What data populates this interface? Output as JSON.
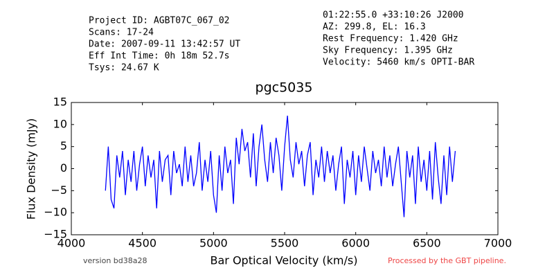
{
  "chart_data": {
    "type": "line",
    "title": "pgc5035",
    "annotations_left": [
      "Project ID: AGBT07C_067_02",
      "Scans: 17-24",
      "Date: 2007-09-11 13:42:57 UT",
      "Eff Int Time: 0h 18m 52.7s",
      "Tsys: 24.67 K"
    ],
    "annotations_right": [
      "01:22:55.0 +33:10:26 J2000",
      "AZ: 299.8, EL: 16.3",
      "Rest Frequency:   1.420 GHz",
      "Sky Frequency:    1.395 GHz",
      "Velocity: 5460 km/s OPTI-BAR"
    ],
    "footer_left": "version bd38a28",
    "footer_right": "Processed by the GBT pipeline.",
    "xlabel": "Bar Optical Velocity (km/s)",
    "ylabel": "Flux Density (mJy)",
    "xlim": [
      4000,
      7000
    ],
    "xticks": [
      4000,
      4500,
      5000,
      5500,
      6000,
      6500,
      7000
    ],
    "ylim": [
      -15,
      15
    ],
    "yticks": [
      {
        "value": -15,
        "label": "−15"
      },
      {
        "value": -10,
        "label": "−10"
      },
      {
        "value": -5,
        "label": "−5"
      },
      0,
      5,
      10,
      15
    ],
    "x": [
      4240,
      4260,
      4280,
      4300,
      4320,
      4340,
      4360,
      4380,
      4400,
      4420,
      4440,
      4460,
      4480,
      4500,
      4520,
      4540,
      4560,
      4580,
      4600,
      4620,
      4640,
      4660,
      4680,
      4700,
      4720,
      4740,
      4760,
      4780,
      4800,
      4820,
      4840,
      4860,
      4880,
      4900,
      4920,
      4940,
      4960,
      4980,
      5000,
      5020,
      5040,
      5060,
      5080,
      5100,
      5120,
      5140,
      5160,
      5180,
      5200,
      5220,
      5240,
      5260,
      5280,
      5300,
      5320,
      5340,
      5360,
      5380,
      5400,
      5420,
      5440,
      5460,
      5480,
      5500,
      5520,
      5540,
      5560,
      5580,
      5600,
      5620,
      5640,
      5660,
      5680,
      5700,
      5720,
      5740,
      5760,
      5780,
      5800,
      5820,
      5840,
      5860,
      5880,
      5900,
      5920,
      5940,
      5960,
      5980,
      6000,
      6020,
      6040,
      6060,
      6080,
      6100,
      6120,
      6140,
      6160,
      6180,
      6200,
      6220,
      6240,
      6260,
      6280,
      6300,
      6320,
      6340,
      6360,
      6380,
      6400,
      6420,
      6440,
      6460,
      6480,
      6500,
      6520,
      6540,
      6560,
      6580,
      6600,
      6620,
      6640,
      6660,
      6680,
      6700
    ],
    "series": [
      {
        "name": "flux",
        "color": "#0000ff",
        "values": [
          -5,
          5,
          -7,
          -9,
          3,
          -2,
          4,
          -6,
          2,
          -3,
          4,
          -5,
          1,
          5,
          -4,
          3,
          -2,
          2,
          -9,
          4,
          -3,
          2,
          3,
          -6,
          4,
          -1,
          1,
          -4,
          5,
          -3,
          3,
          -4,
          -1,
          6,
          -5,
          2,
          -3,
          4,
          -6,
          -10,
          3,
          -5,
          5,
          -1,
          2,
          -8,
          7,
          1,
          9,
          4,
          6,
          -2,
          8,
          -4,
          5,
          10,
          2,
          -3,
          6,
          -1,
          7,
          3,
          -5,
          5,
          12,
          2,
          -2,
          6,
          1,
          4,
          -4,
          3,
          6,
          -6,
          2,
          -2,
          5,
          -3,
          4,
          -1,
          3,
          -5,
          1,
          5,
          -8,
          2,
          -2,
          4,
          -6,
          3,
          -3,
          5,
          0,
          -5,
          4,
          -1,
          2,
          -4,
          5,
          -2,
          3,
          -4,
          1,
          5,
          -3,
          -11,
          4,
          -2,
          3,
          -8,
          5,
          -3,
          2,
          -5,
          4,
          -7,
          6,
          -2,
          -8,
          3,
          -6,
          5,
          -3,
          4
        ]
      }
    ]
  }
}
